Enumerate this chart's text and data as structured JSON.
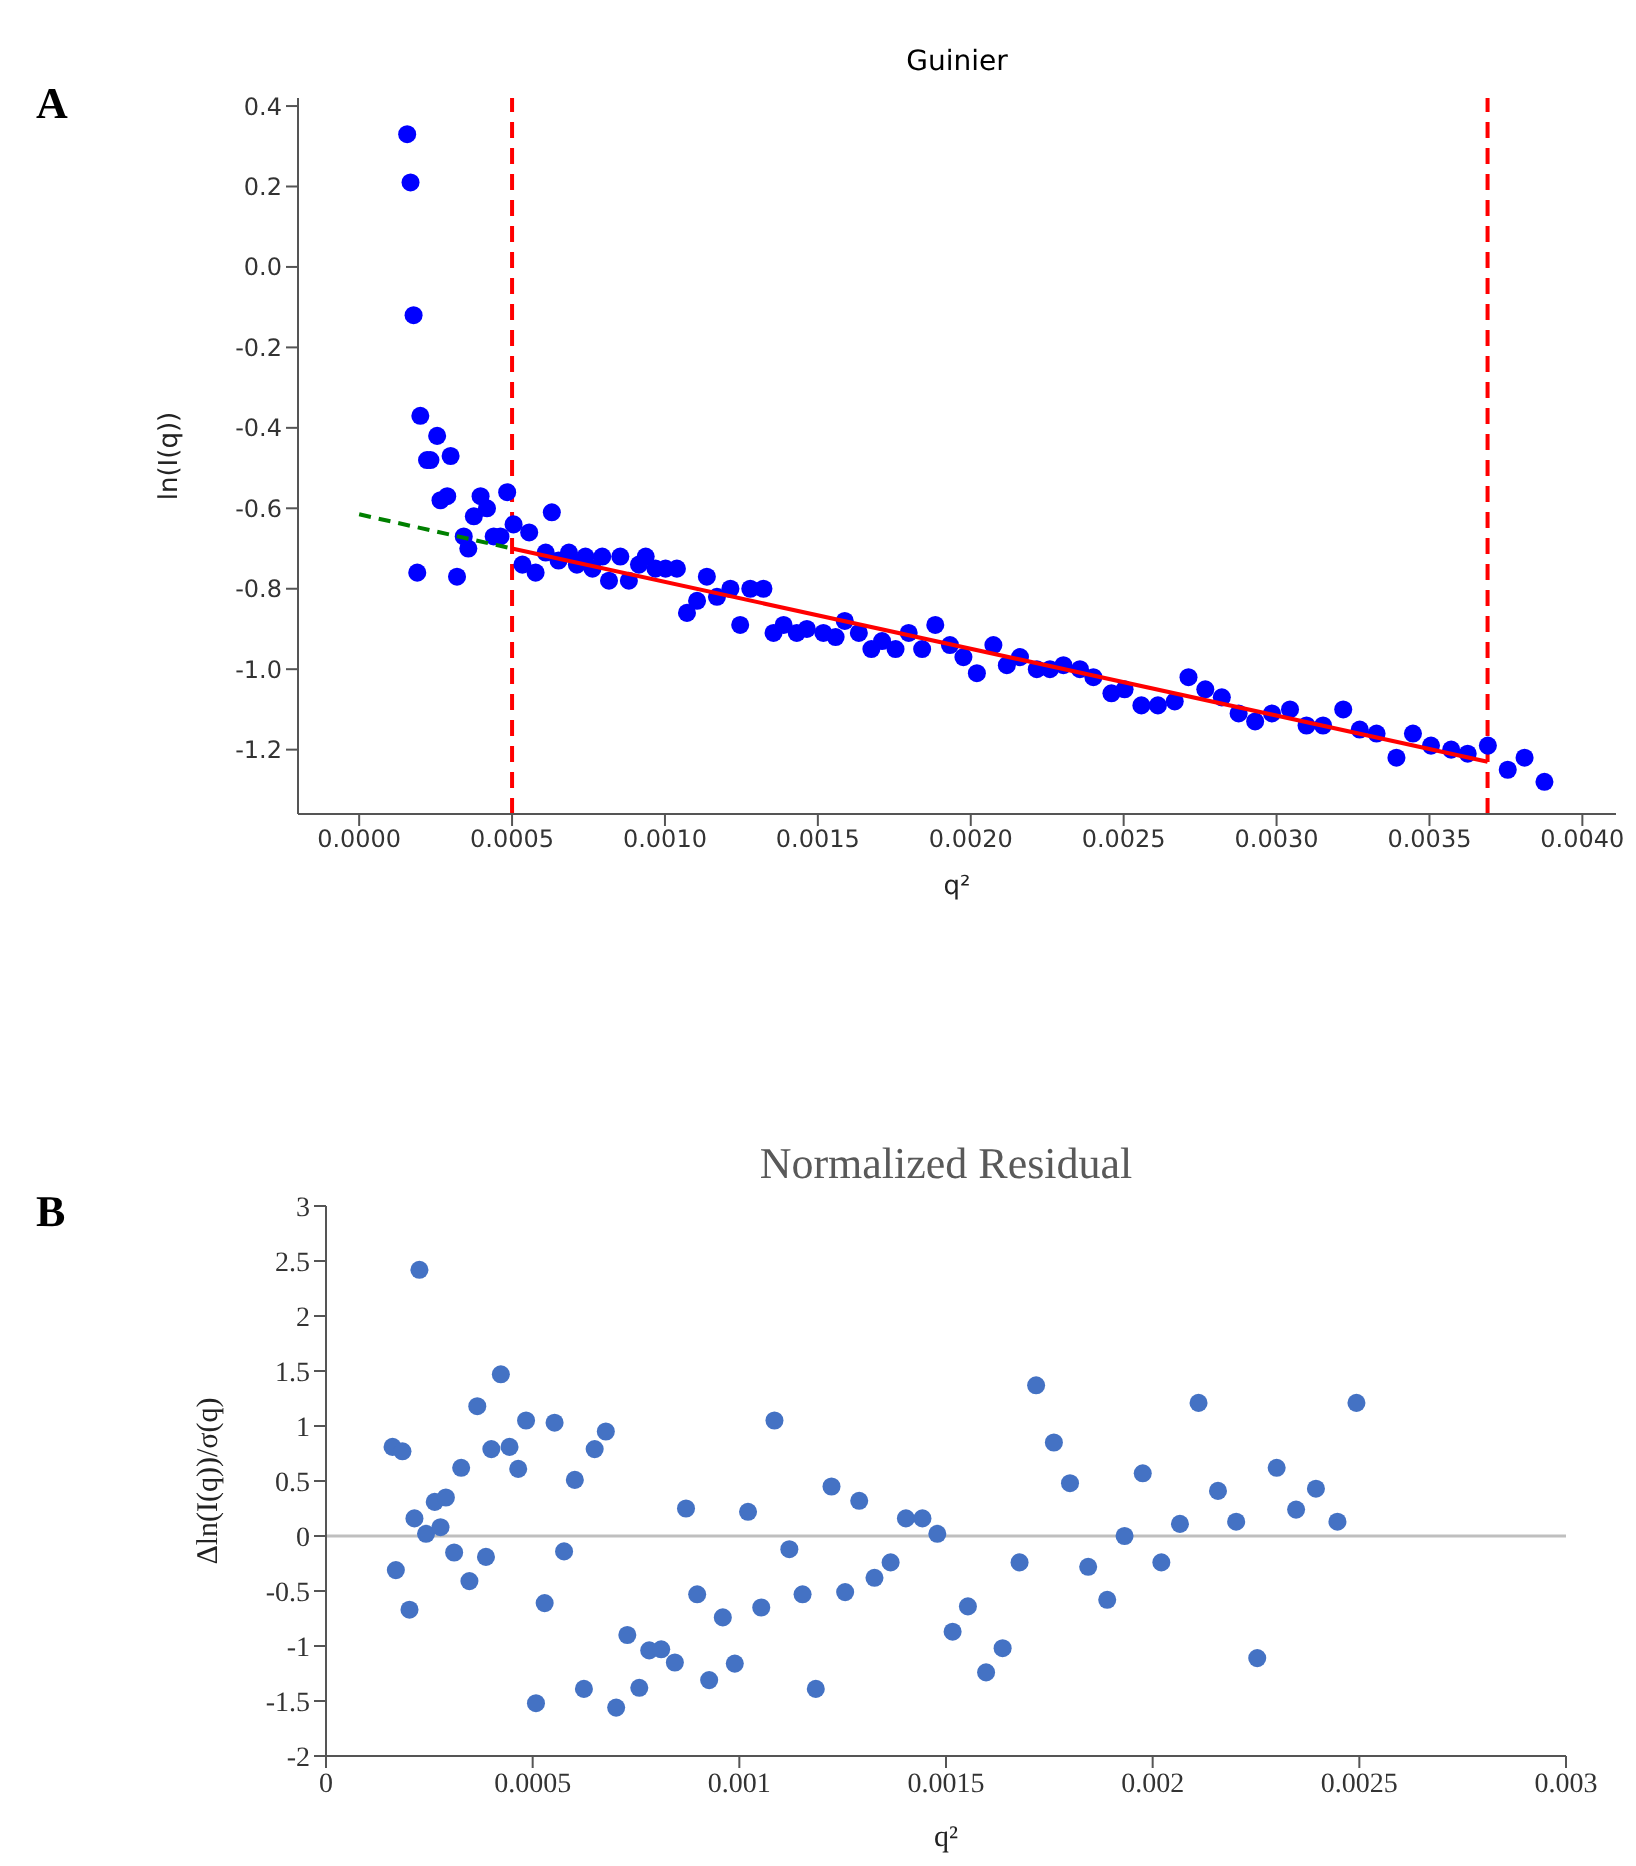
{
  "chart_data": [
    {
      "type": "scatter",
      "title": "Guinier",
      "xlabel": "q²",
      "ylabel": "ln(I(q))",
      "annotations": [
        "A"
      ],
      "xlim": [
        -0.0002,
        0.00411
      ],
      "ylim": [
        -1.36,
        0.42
      ],
      "xticks": [
        {
          "value": 0,
          "label": "0.0000"
        },
        {
          "value": 0.0005,
          "label": "0.0005"
        },
        {
          "value": 0.001,
          "label": "0.0010"
        },
        {
          "value": 0.0015,
          "label": "0.0015"
        },
        {
          "value": 0.002,
          "label": "0.0020"
        },
        {
          "value": 0.0025,
          "label": "0.0025"
        },
        {
          "value": 0.003,
          "label": "0.0030"
        },
        {
          "value": 0.0035,
          "label": "0.0035"
        },
        {
          "value": 0.004,
          "label": "0.0040"
        }
      ],
      "yticks": [
        {
          "value": -1.2,
          "label": "-1.2"
        },
        {
          "value": -1.0,
          "label": "-1.0"
        },
        {
          "value": -0.8,
          "label": "-0.8"
        },
        {
          "value": -0.6,
          "label": "-0.6"
        },
        {
          "value": -0.4,
          "label": "-0.4"
        },
        {
          "value": -0.2,
          "label": "-0.2"
        },
        {
          "value": 0,
          "label": "0.0"
        },
        {
          "value": 0.2,
          "label": "0.2"
        },
        {
          "value": 0.4,
          "label": "0.4"
        }
      ],
      "ref_lines": [
        {
          "axis": "x",
          "value": 0.0005,
          "color": "#ff0000",
          "line_style": "dashed"
        },
        {
          "axis": "x",
          "value": 0.00369,
          "color": "#ff0000",
          "line_style": "dashed"
        }
      ],
      "series": [
        {
          "type": "scatter",
          "color": "#0000ff",
          "marker": "circle",
          "x": [
            0.000157,
            0.000168,
            0.000178,
            0.0002,
            0.000255,
            0.000222,
            0.000233,
            0.000299,
            0.000266,
            0.000288,
            0.00019,
            0.00032,
            0.000342,
            0.000357,
            0.000375,
            0.000397,
            0.000418,
            0.00044,
            0.000462,
            0.000484,
            0.000505,
            0.000534,
            0.000556,
            0.000577,
            0.00061,
            0.00063,
            0.000652,
            0.000686,
            0.000712,
            0.00074,
            0.000763,
            0.000795,
            0.000817,
            0.000854,
            0.000882,
            0.000915,
            0.000937,
            0.000969,
            0.001002,
            0.001039,
            0.001072,
            0.001105,
            0.001137,
            0.00117,
            0.001214,
            0.001246,
            0.001279,
            0.001322,
            0.001355,
            0.001388,
            0.001431,
            0.001464,
            0.001518,
            0.001558,
            0.001588,
            0.001634,
            0.001675,
            0.00171,
            0.001754,
            0.001797,
            0.001841,
            0.001884,
            0.001932,
            0.001976,
            0.00202,
            0.002074,
            0.002118,
            0.002161,
            0.002216,
            0.002259,
            0.002303,
            0.002357,
            0.002401,
            0.00246,
            0.002503,
            0.002558,
            0.002612,
            0.002667,
            0.002712,
            0.002767,
            0.002821,
            0.002876,
            0.00293,
            0.002985,
            0.003044,
            0.003098,
            0.003152,
            0.003218,
            0.003272,
            0.003327,
            0.003392,
            0.003446,
            0.003505,
            0.003571,
            0.003625,
            0.003691,
            0.003756,
            0.003811,
            0.003876
          ],
          "values": [
            0.33,
            0.21,
            -0.12,
            -0.37,
            -0.42,
            -0.48,
            -0.48,
            -0.47,
            -0.58,
            -0.57,
            -0.76,
            -0.77,
            -0.67,
            -0.7,
            -0.62,
            -0.57,
            -0.6,
            -0.67,
            -0.67,
            -0.56,
            -0.64,
            -0.74,
            -0.66,
            -0.76,
            -0.71,
            -0.61,
            -0.73,
            -0.71,
            -0.74,
            -0.72,
            -0.75,
            -0.72,
            -0.78,
            -0.72,
            -0.78,
            -0.74,
            -0.72,
            -0.75,
            -0.75,
            -0.75,
            -0.86,
            -0.83,
            -0.77,
            -0.82,
            -0.8,
            -0.89,
            -0.8,
            -0.8,
            -0.91,
            -0.89,
            -0.91,
            -0.9,
            -0.91,
            -0.92,
            -0.88,
            -0.91,
            -0.95,
            -0.93,
            -0.95,
            -0.91,
            -0.95,
            -0.89,
            -0.94,
            -0.97,
            -1.01,
            -0.94,
            -0.99,
            -0.97,
            -1.0,
            -1.0,
            -0.99,
            -1.0,
            -1.02,
            -1.06,
            -1.05,
            -1.09,
            -1.09,
            -1.08,
            -1.02,
            -1.05,
            -1.07,
            -1.11,
            -1.13,
            -1.11,
            -1.1,
            -1.14,
            -1.14,
            -1.1,
            -1.15,
            -1.16,
            -1.22,
            -1.16,
            -1.19,
            -1.2,
            -1.21,
            -1.19,
            -1.25,
            -1.22,
            -1.28
          ]
        },
        {
          "type": "line",
          "color": "#ff0000",
          "line_style": "solid",
          "x": [
            0.0005,
            0.00369
          ],
          "values": [
            -0.7,
            -1.23
          ]
        },
        {
          "type": "line",
          "color": "#008000",
          "line_style": "dashed",
          "x": [
            0,
            0.0005
          ],
          "values": [
            -0.615,
            -0.7
          ]
        }
      ]
    },
    {
      "type": "scatter",
      "title": "Normalized Residual",
      "xlabel": "q²",
      "ylabel": "Δln(I(q))/σ(q)",
      "annotations": [
        "B"
      ],
      "marker": "circle",
      "xlim": [
        0,
        0.003
      ],
      "ylim": [
        -2,
        3
      ],
      "xticks": [
        0,
        0.0005,
        0.001,
        0.0015,
        0.002,
        0.0025,
        0.003
      ],
      "yticks": [
        -2,
        -1.5,
        -1,
        -0.5,
        0,
        0.5,
        1,
        1.5,
        2,
        2.5,
        3
      ],
      "ref_lines": [
        {
          "axis": "y",
          "value": 0,
          "color": "#bfbfbf",
          "line_style": "solid"
        }
      ],
      "series": [
        {
          "type": "scatter",
          "color": "#4472c4",
          "x": [
            0.000226,
            0.000161,
            0.000185,
            0.000169,
            0.000202,
            0.000214,
            0.000242,
            0.000263,
            0.00029,
            0.000277,
            0.000327,
            0.00031,
            0.000347,
            0.000366,
            0.000387,
            0.0004,
            0.000423,
            0.000444,
            0.000465,
            0.000484,
            0.000508,
            0.000529,
            0.000553,
            0.000576,
            0.000602,
            0.000624,
            0.00065,
            0.000677,
            0.000702,
            0.000729,
            0.000758,
            0.000782,
            0.000811,
            0.000844,
            0.000871,
            0.000898,
            0.000927,
            0.00096,
            0.000989,
            0.001021,
            0.001053,
            0.001085,
            0.001121,
            0.001153,
            0.001185,
            0.001223,
            0.001256,
            0.00129,
            0.001327,
            0.001366,
            0.001403,
            0.001443,
            0.001479,
            0.001516,
            0.001553,
            0.001597,
            0.001637,
            0.001678,
            0.001718,
            0.001761,
            0.0018,
            0.001844,
            0.00189,
            0.001932,
            0.001976,
            0.002021,
            0.002066,
            0.002111,
            0.002158,
            0.002202,
            0.002253,
            0.0023,
            0.002347,
            0.002395,
            0.002447,
            0.002493
          ],
          "values": [
            2.42,
            0.81,
            0.77,
            -0.31,
            -0.67,
            0.16,
            0.02,
            0.31,
            0.35,
            0.08,
            0.62,
            -0.15,
            -0.41,
            1.18,
            -0.19,
            0.79,
            1.47,
            0.81,
            0.61,
            1.05,
            -1.52,
            -0.61,
            1.03,
            -0.14,
            0.51,
            -1.39,
            0.79,
            0.95,
            -1.56,
            -0.9,
            -1.38,
            -1.04,
            -1.03,
            -1.15,
            0.25,
            -0.53,
            -1.31,
            -0.74,
            -1.16,
            0.22,
            -0.65,
            1.05,
            -0.12,
            -0.53,
            -1.39,
            0.45,
            -0.51,
            0.32,
            -0.38,
            -0.24,
            0.16,
            0.16,
            0.02,
            -0.87,
            -0.64,
            -1.24,
            -1.02,
            -0.24,
            1.37,
            0.85,
            0.48,
            -0.28,
            -0.58,
            0,
            0.57,
            -0.24,
            0.11,
            1.21,
            0.41,
            0.13,
            -1.11,
            0.62,
            0.24,
            0.43,
            0.13,
            1.21
          ]
        }
      ]
    }
  ]
}
